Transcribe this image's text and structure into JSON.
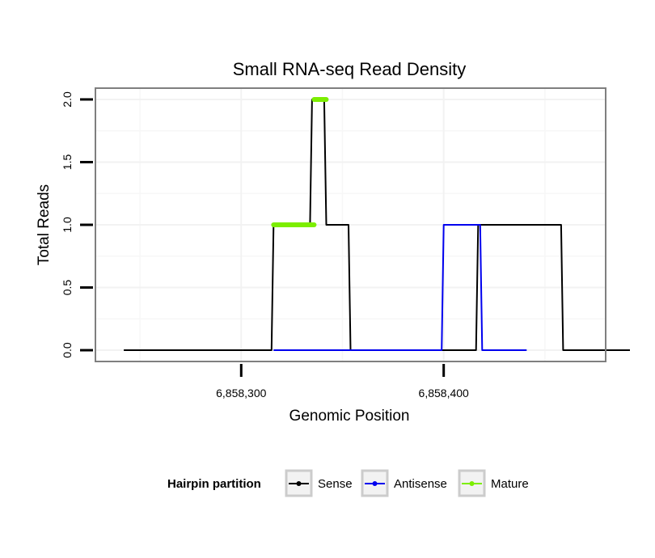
{
  "chart_data": {
    "type": "line",
    "title": "Small RNA-seq Read Density",
    "xlabel": "Genomic Position",
    "ylabel": "Total Reads",
    "xlim": [
      6858228,
      6858480
    ],
    "ylim": [
      -0.09,
      2.09
    ],
    "x_ticks": [
      {
        "value": 6858300,
        "label": "6,858,300"
      },
      {
        "value": 6858400,
        "label": "6,858,400"
      }
    ],
    "y_ticks": [
      {
        "value": 0.0,
        "label": "0.0"
      },
      {
        "value": 0.5,
        "label": "0.5"
      },
      {
        "value": 1.0,
        "label": "1.0"
      },
      {
        "value": 1.5,
        "label": "1.5"
      },
      {
        "value": 2.0,
        "label": "2.0"
      }
    ],
    "grid": true,
    "legend": {
      "title": "Hairpin partition",
      "position": "bottom",
      "entries": [
        "Sense",
        "Antisense",
        "Mature"
      ]
    },
    "series": [
      {
        "name": "Sense",
        "color": "#000000",
        "x": [
          6858242,
          6858315,
          6858316,
          6858334,
          6858335,
          6858341,
          6858342,
          6858353,
          6858354,
          6858416,
          6858417,
          6858458,
          6858459,
          6858492
        ],
        "y": [
          0,
          0,
          1,
          1,
          2,
          2,
          1,
          1,
          0,
          0,
          1,
          1,
          0,
          0
        ]
      },
      {
        "name": "Antisense",
        "color": "#0000ee",
        "x": [
          6858316,
          6858354,
          6858399,
          6858400,
          6858418,
          6858419,
          6858440,
          6858441
        ],
        "y": [
          0,
          0,
          0,
          1,
          1,
          0,
          0,
          0
        ]
      },
      {
        "name": "Mature",
        "color": "#7cee00",
        "segments": [
          {
            "x": [
              6858316,
              6858336
            ],
            "y": [
              1,
              1
            ]
          },
          {
            "x": [
              6858336,
              6858342
            ],
            "y": [
              2,
              2
            ]
          }
        ]
      }
    ]
  }
}
